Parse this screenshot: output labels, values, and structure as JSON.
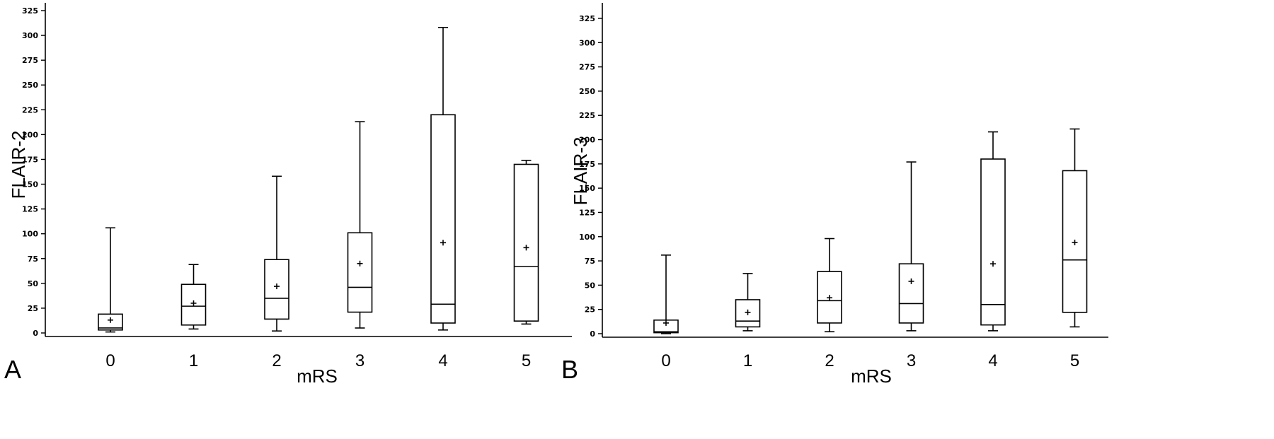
{
  "chart_data": [
    {
      "type": "box",
      "panel_label": "A",
      "xlabel": "mRS",
      "ylabel": "FLAIR-2",
      "ylim": [
        0,
        325
      ],
      "yticks": [
        0,
        25,
        50,
        75,
        100,
        125,
        150,
        175,
        200,
        225,
        250,
        275,
        300,
        325
      ],
      "categories": [
        "0",
        "1",
        "2",
        "3",
        "4",
        "5"
      ],
      "boxes": [
        {
          "category": "0",
          "min": 1,
          "q1": 3,
          "median": 5,
          "q3": 19,
          "max": 106,
          "mean": 13
        },
        {
          "category": "1",
          "min": 4,
          "q1": 8,
          "median": 27,
          "q3": 49,
          "max": 69,
          "mean": 30
        },
        {
          "category": "2",
          "min": 2,
          "q1": 14,
          "median": 35,
          "q3": 74,
          "max": 158,
          "mean": 47
        },
        {
          "category": "3",
          "min": 5,
          "q1": 21,
          "median": 46,
          "q3": 101,
          "max": 213,
          "mean": 70
        },
        {
          "category": "4",
          "min": 3,
          "q1": 10,
          "median": 29,
          "q3": 220,
          "max": 308,
          "mean": 91
        },
        {
          "category": "5",
          "min": 9,
          "q1": 12,
          "median": 67,
          "q3": 170,
          "max": 174,
          "mean": 86
        }
      ]
    },
    {
      "type": "box",
      "panel_label": "B",
      "xlabel": "mRS",
      "ylabel": "FLAIR-3",
      "ylim": [
        0,
        325
      ],
      "yticks": [
        0,
        25,
        50,
        75,
        100,
        125,
        150,
        175,
        200,
        225,
        250,
        275,
        300,
        325
      ],
      "categories": [
        "0",
        "1",
        "2",
        "3",
        "4",
        "5"
      ],
      "boxes": [
        {
          "category": "0",
          "min": 0,
          "q1": 1,
          "median": 2,
          "q3": 14,
          "max": 81,
          "mean": 11
        },
        {
          "category": "1",
          "min": 3,
          "q1": 7,
          "median": 13,
          "q3": 35,
          "max": 62,
          "mean": 22
        },
        {
          "category": "2",
          "min": 2,
          "q1": 11,
          "median": 34,
          "q3": 64,
          "max": 98,
          "mean": 37
        },
        {
          "category": "3",
          "min": 3,
          "q1": 11,
          "median": 31,
          "q3": 72,
          "max": 177,
          "mean": 54
        },
        {
          "category": "4",
          "min": 3,
          "q1": 9,
          "median": 30,
          "q3": 180,
          "max": 208,
          "mean": 72
        },
        {
          "category": "5",
          "min": 7,
          "q1": 22,
          "median": 76,
          "q3": 168,
          "max": 211,
          "mean": 94
        }
      ]
    }
  ]
}
